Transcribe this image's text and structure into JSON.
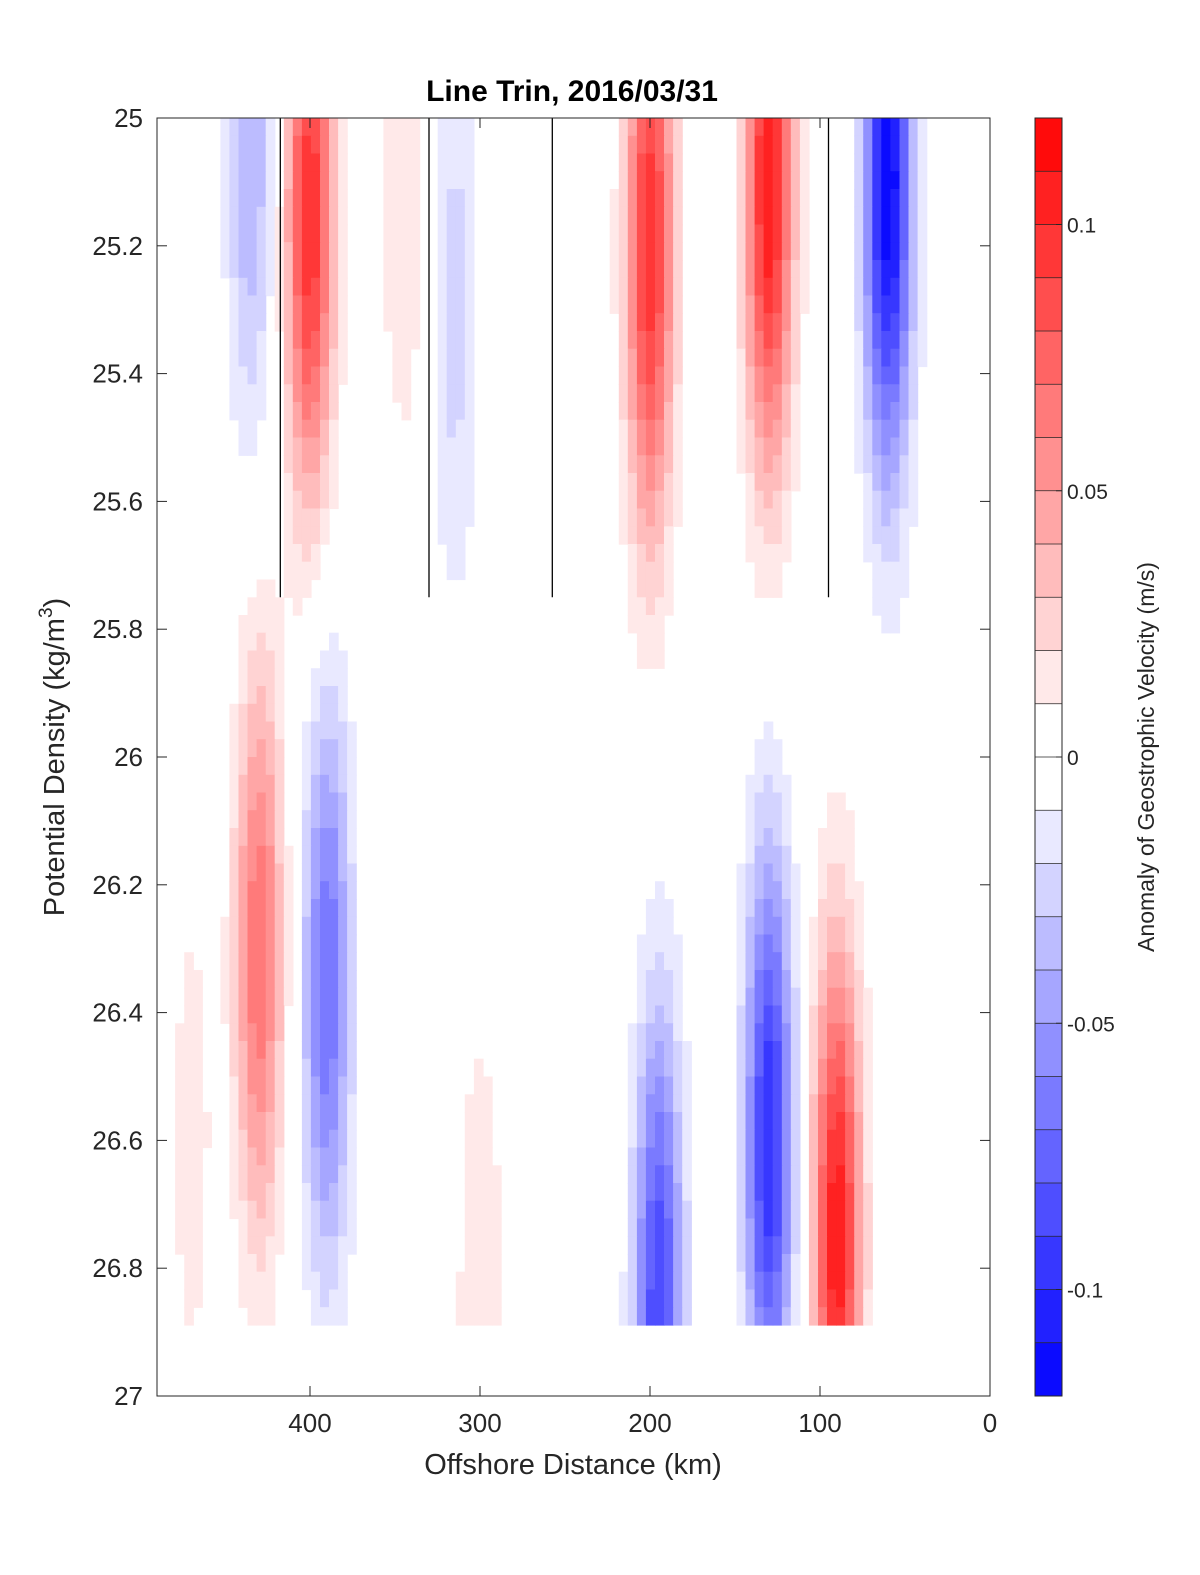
{
  "chart_data": {
    "type": "heatmap",
    "subtype": "filled-contour",
    "title": "Line Trin, 2016/03/31",
    "xlabel": "Offshore Distance (km)",
    "ylabel_main": "Potential Density (kg/m",
    "ylabel_sup": "3",
    "ylabel_end": ")",
    "xlim": [
      490,
      0
    ],
    "x_reversed": true,
    "ylim": [
      25,
      27
    ],
    "y_reversed": true,
    "xticks": [
      400,
      300,
      200,
      100,
      0
    ],
    "xtick_labels": [
      "400",
      "300",
      "200",
      "100",
      "0"
    ],
    "yticks": [
      25,
      25.2,
      25.4,
      25.6,
      25.8,
      26,
      26.2,
      26.4,
      26.6,
      26.8,
      27
    ],
    "ytick_labels": [
      "25",
      "25.2",
      "25.4",
      "25.6",
      "25.8",
      "26",
      "26.2",
      "26.4",
      "26.6",
      "26.8",
      "27"
    ],
    "zero_contour": true,
    "colorbar": {
      "label": "Anomaly of Geostrophic Velocity (m/s)",
      "range": [
        -0.12,
        0.12
      ],
      "levels": 24,
      "ticks": [
        0.1,
        0.05,
        0,
        -0.05,
        -0.1
      ],
      "tick_labels": [
        "0.1",
        "0.05",
        "0",
        "-0.05",
        "-0.1"
      ],
      "colormap": "blue-white-red",
      "negative_color": "#0000ff",
      "positive_color": "#ff0000",
      "zero_color": "#ffffff"
    },
    "columns_x": [
      490,
      480,
      470,
      460,
      450,
      440,
      430,
      420,
      415,
      410,
      400,
      390,
      380,
      370,
      360,
      350,
      340,
      330,
      320,
      310,
      300,
      290,
      280,
      270,
      260,
      250,
      240,
      230,
      220,
      210,
      200,
      190,
      180,
      170,
      160,
      150,
      140,
      130,
      120,
      110,
      100,
      90,
      80,
      70,
      60,
      50,
      40,
      30
    ],
    "rows_sigma": [
      25.0,
      25.1,
      25.2,
      25.3,
      25.4,
      25.5,
      25.6,
      25.7,
      25.8,
      25.9,
      26.0,
      26.1,
      26.2,
      26.3,
      26.4,
      26.5,
      26.6,
      26.7,
      26.8,
      26.9
    ],
    "data_extent": {
      "upper_region_x": [
        490,
        30
      ],
      "upper_region_sigma": [
        25,
        26.8
      ],
      "lower_region_x": [
        480,
        40
      ],
      "lower_region_sigma": [
        26.8,
        26.9
      ]
    },
    "velocity_anomaly_features": [
      {
        "x": 435,
        "sigma": 25.05,
        "peak": -0.04
      },
      {
        "x": 400,
        "sigma": 25.15,
        "peak": 0.1
      },
      {
        "x": 345,
        "sigma": 25.1,
        "peak": 0.02
      },
      {
        "x": 315,
        "sigma": 25.3,
        "peak": -0.025
      },
      {
        "x": 200,
        "sigma": 25.2,
        "peak": 0.1
      },
      {
        "x": 130,
        "sigma": 25.1,
        "peak": 0.11
      },
      {
        "x": 60,
        "sigma": 25.1,
        "peak": -0.12
      },
      {
        "x": 430,
        "sigma": 26.3,
        "peak": 0.07
      },
      {
        "x": 390,
        "sigma": 26.35,
        "peak": -0.07
      },
      {
        "x": 195,
        "sigma": 26.85,
        "peak": -0.09
      },
      {
        "x": 130,
        "sigma": 26.6,
        "peak": -0.1
      },
      {
        "x": 90,
        "sigma": 26.75,
        "peak": 0.11
      },
      {
        "x": 300,
        "sigma": 26.85,
        "peak": 0.02
      },
      {
        "x": 470,
        "sigma": 26.6,
        "peak": 0.015
      }
    ]
  }
}
